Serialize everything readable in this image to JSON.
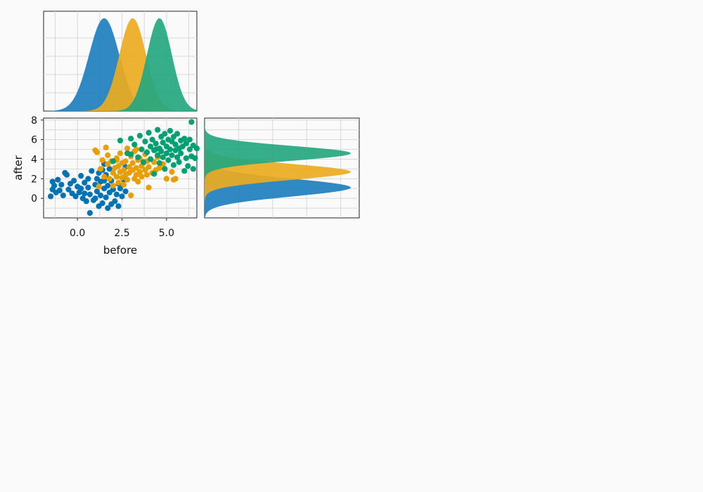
{
  "chart_data": {
    "type": "scatter",
    "xlabel": "before",
    "ylabel": "after",
    "xlim": [
      -1.9,
      6.7
    ],
    "ylim": [
      -2.0,
      8.2
    ],
    "x_ticks": [
      {
        "value": 0,
        "label": "0.0"
      },
      {
        "value": 2.5,
        "label": "2.5"
      },
      {
        "value": 5,
        "label": "5.0"
      }
    ],
    "y_ticks": [
      {
        "value": 0,
        "label": "0"
      },
      {
        "value": 2,
        "label": "2"
      },
      {
        "value": 4,
        "label": "4"
      },
      {
        "value": 6,
        "label": "6"
      },
      {
        "value": 8,
        "label": "8"
      }
    ],
    "grid": true,
    "legend": "none",
    "series": [
      {
        "color": "#0072B2",
        "fill": "#1f7fbf",
        "x_density": {
          "mean": 1.5,
          "sd": 0.85
        },
        "y_density": {
          "mean": 1.1,
          "sd": 0.9
        },
        "points": [
          [
            -1.5,
            0.2
          ],
          [
            -1.4,
            1.7
          ],
          [
            -1.4,
            0.9
          ],
          [
            -1.3,
            1.3
          ],
          [
            -1.2,
            0.6
          ],
          [
            -1.1,
            1.9
          ],
          [
            -1.0,
            0.8
          ],
          [
            -0.9,
            1.4
          ],
          [
            -0.8,
            0.3
          ],
          [
            -0.7,
            2.6
          ],
          [
            -0.6,
            2.4
          ],
          [
            -0.5,
            0.9
          ],
          [
            -0.4,
            1.5
          ],
          [
            -0.3,
            0.5
          ],
          [
            -0.2,
            1.8
          ],
          [
            -0.1,
            0.2
          ],
          [
            0.0,
            1.2
          ],
          [
            0.1,
            0.6
          ],
          [
            0.2,
            2.3
          ],
          [
            0.3,
            0.0
          ],
          [
            0.4,
            1.6
          ],
          [
            0.5,
            -0.3
          ],
          [
            0.6,
            1.1
          ],
          [
            0.7,
            0.4
          ],
          [
            0.7,
            -1.5
          ],
          [
            0.8,
            2.8
          ],
          [
            0.9,
            -0.2
          ],
          [
            1.0,
            1.4
          ],
          [
            1.1,
            0.7
          ],
          [
            1.1,
            2.0
          ],
          [
            1.2,
            -0.8
          ],
          [
            1.3,
            1.7
          ],
          [
            1.3,
            0.3
          ],
          [
            1.4,
            2.9
          ],
          [
            1.4,
            -0.5
          ],
          [
            1.5,
            1.0
          ],
          [
            1.5,
            3.5
          ],
          [
            1.6,
            0.1
          ],
          [
            1.6,
            2.4
          ],
          [
            1.7,
            -1.0
          ],
          [
            1.7,
            1.3
          ],
          [
            1.8,
            0.6
          ],
          [
            1.8,
            3.0
          ],
          [
            1.9,
            -0.6
          ],
          [
            1.9,
            1.8
          ],
          [
            2.0,
            0.9
          ],
          [
            2.0,
            3.8
          ],
          [
            2.1,
            -0.3
          ],
          [
            2.2,
            2.2
          ],
          [
            2.2,
            0.4
          ],
          [
            2.3,
            1.5
          ],
          [
            2.3,
            -0.8
          ],
          [
            2.4,
            2.7
          ],
          [
            2.4,
            1.0
          ],
          [
            2.5,
            0.2
          ],
          [
            2.6,
            1.9
          ],
          [
            2.7,
            3.2
          ],
          [
            2.7,
            0.7
          ],
          [
            0.2,
            1.0
          ],
          [
            0.6,
            2.0
          ],
          [
            1.0,
            0.0
          ],
          [
            1.2,
            2.6
          ],
          [
            1.5,
            1.8
          ],
          [
            0.4,
            0.5
          ]
        ]
      },
      {
        "color": "#E69F00",
        "fill": "#ebab20",
        "x_density": {
          "mean": 3.1,
          "sd": 0.75
        },
        "y_density": {
          "mean": 2.7,
          "sd": 0.8
        },
        "points": [
          [
            1.0,
            4.9
          ],
          [
            1.1,
            4.7
          ],
          [
            1.2,
            1.2
          ],
          [
            1.3,
            3.0
          ],
          [
            1.4,
            3.9
          ],
          [
            1.5,
            2.2
          ],
          [
            1.6,
            5.2
          ],
          [
            1.7,
            3.5
          ],
          [
            1.7,
            4.4
          ],
          [
            1.8,
            2.0
          ],
          [
            1.9,
            3.8
          ],
          [
            2.0,
            2.6
          ],
          [
            2.0,
            1.3
          ],
          [
            2.1,
            3.1
          ],
          [
            2.2,
            4.1
          ],
          [
            2.2,
            2.2
          ],
          [
            2.3,
            1.6
          ],
          [
            2.3,
            3.3
          ],
          [
            2.4,
            2.7
          ],
          [
            2.4,
            4.6
          ],
          [
            2.5,
            2.1
          ],
          [
            2.5,
            3.6
          ],
          [
            2.6,
            1.4
          ],
          [
            2.6,
            2.9
          ],
          [
            2.7,
            3.8
          ],
          [
            2.7,
            2.4
          ],
          [
            2.8,
            5.1
          ],
          [
            2.8,
            1.9
          ],
          [
            2.9,
            3.2
          ],
          [
            2.9,
            2.6
          ],
          [
            3.0,
            4.3
          ],
          [
            3.0,
            0.3
          ],
          [
            3.1,
            2.9
          ],
          [
            3.1,
            3.6
          ],
          [
            3.2,
            2.0
          ],
          [
            3.2,
            4.8
          ],
          [
            3.3,
            3.1
          ],
          [
            3.3,
            2.4
          ],
          [
            3.4,
            3.9
          ],
          [
            3.4,
            1.7
          ],
          [
            3.5,
            2.7
          ],
          [
            3.5,
            4.1
          ],
          [
            3.6,
            3.3
          ],
          [
            3.6,
            2.2
          ],
          [
            3.7,
            3.6
          ],
          [
            3.8,
            2.9
          ],
          [
            3.8,
            4.5
          ],
          [
            3.9,
            2.4
          ],
          [
            4.0,
            3.2
          ],
          [
            4.0,
            1.1
          ],
          [
            4.1,
            4.0
          ],
          [
            4.2,
            2.6
          ],
          [
            4.3,
            3.7
          ],
          [
            4.4,
            2.9
          ],
          [
            4.5,
            4.2
          ],
          [
            4.6,
            3.1
          ],
          [
            4.8,
            3.5
          ],
          [
            5.0,
            2.0
          ],
          [
            5.3,
            2.7
          ],
          [
            5.4,
            1.9
          ],
          [
            5.5,
            2.0
          ],
          [
            3.3,
            5.0
          ],
          [
            2.2,
            3.9
          ],
          [
            3.9,
            3.8
          ]
        ]
      },
      {
        "color": "#009E73",
        "fill": "#24a77f",
        "x_density": {
          "mean": 4.6,
          "sd": 0.7
        },
        "y_density": {
          "mean": 4.6,
          "sd": 0.75
        },
        "points": [
          [
            2.0,
            3.8
          ],
          [
            2.4,
            5.9
          ],
          [
            2.8,
            4.6
          ],
          [
            3.0,
            6.1
          ],
          [
            3.2,
            5.5
          ],
          [
            3.4,
            4.2
          ],
          [
            3.5,
            6.4
          ],
          [
            3.6,
            5.0
          ],
          [
            3.7,
            3.7
          ],
          [
            3.8,
            5.8
          ],
          [
            3.9,
            4.7
          ],
          [
            4.0,
            6.7
          ],
          [
            4.1,
            5.3
          ],
          [
            4.1,
            4.0
          ],
          [
            4.2,
            6.0
          ],
          [
            4.3,
            4.9
          ],
          [
            4.3,
            2.5
          ],
          [
            4.4,
            5.6
          ],
          [
            4.5,
            4.4
          ],
          [
            4.5,
            7.0
          ],
          [
            4.6,
            5.1
          ],
          [
            4.6,
            3.6
          ],
          [
            4.7,
            6.3
          ],
          [
            4.7,
            4.8
          ],
          [
            4.8,
            5.7
          ],
          [
            4.8,
            4.2
          ],
          [
            4.9,
            6.6
          ],
          [
            4.9,
            3.0
          ],
          [
            5.0,
            5.3
          ],
          [
            5.0,
            4.6
          ],
          [
            5.1,
            6.0
          ],
          [
            5.1,
            3.9
          ],
          [
            5.2,
            5.0
          ],
          [
            5.2,
            6.9
          ],
          [
            5.3,
            4.4
          ],
          [
            5.3,
            5.8
          ],
          [
            5.4,
            3.4
          ],
          [
            5.4,
            6.3
          ],
          [
            5.5,
            4.9
          ],
          [
            5.5,
            5.5
          ],
          [
            5.6,
            4.2
          ],
          [
            5.6,
            6.6
          ],
          [
            5.7,
            5.1
          ],
          [
            5.7,
            3.7
          ],
          [
            5.8,
            5.9
          ],
          [
            5.8,
            4.6
          ],
          [
            5.9,
            5.3
          ],
          [
            6.0,
            2.8
          ],
          [
            6.0,
            6.1
          ],
          [
            6.1,
            4.1
          ],
          [
            6.1,
            5.6
          ],
          [
            6.2,
            3.3
          ],
          [
            6.3,
            5.0
          ],
          [
            6.3,
            6.0
          ],
          [
            6.4,
            4.3
          ],
          [
            6.5,
            5.4
          ],
          [
            6.5,
            3.0
          ],
          [
            6.6,
            4.1
          ],
          [
            6.7,
            5.1
          ],
          [
            6.4,
            7.8
          ],
          [
            3.0,
            4.5
          ],
          [
            4.4,
            5.0
          ]
        ]
      }
    ]
  }
}
